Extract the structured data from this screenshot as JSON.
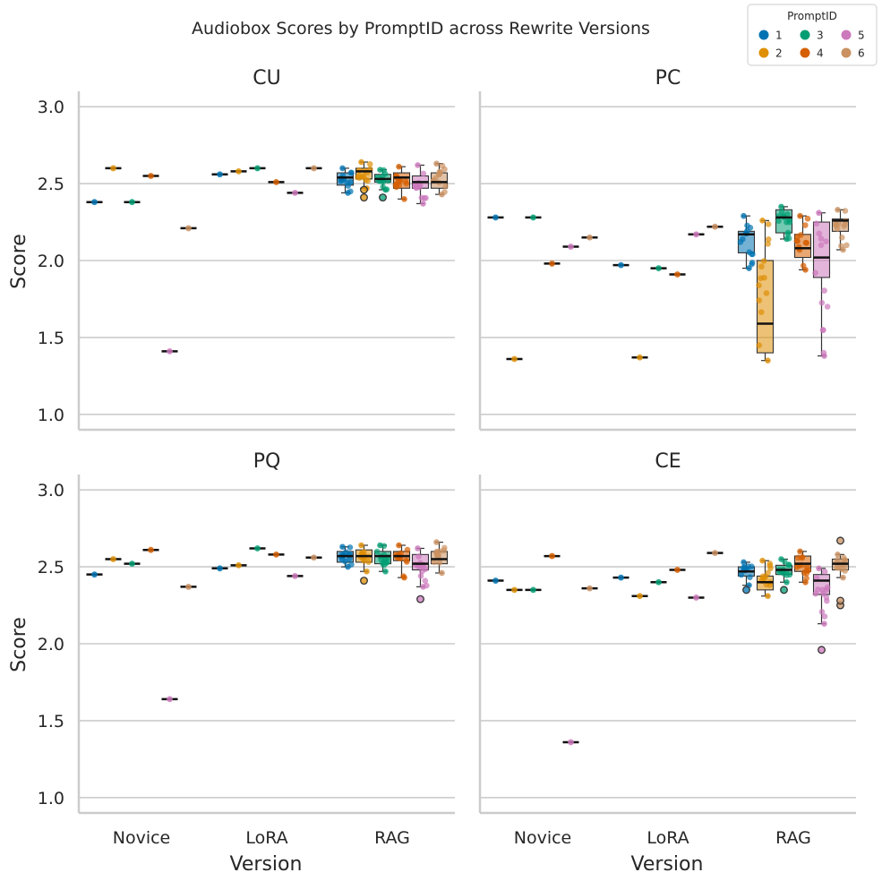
{
  "chart_data": {
    "type": "box",
    "title": "Audiobox Scores by PromptID across Rewrite Versions",
    "xlabel": "Version",
    "ylabel": "Score",
    "categories": [
      "Novice",
      "LoRA",
      "RAG"
    ],
    "ylim": [
      0.9,
      3.1
    ],
    "yticks": [
      "1.0",
      "1.5",
      "2.0",
      "2.5",
      "3.0"
    ],
    "grid": "horizontal",
    "legend": {
      "title": "PromptID",
      "placement": "top-right",
      "entries": [
        {
          "label": "1",
          "color": "#0173b2"
        },
        {
          "label": "2",
          "color": "#de8f05"
        },
        {
          "label": "3",
          "color": "#029e73"
        },
        {
          "label": "4",
          "color": "#d55e00"
        },
        {
          "label": "5",
          "color": "#cc78bc"
        },
        {
          "label": "6",
          "color": "#ca9161"
        }
      ]
    },
    "panels": [
      {
        "name": "CU",
        "novice": [
          2.38,
          2.6,
          2.38,
          2.55,
          1.41,
          2.21
        ],
        "lora": [
          2.56,
          2.58,
          2.6,
          2.51,
          2.44,
          2.6
        ],
        "rag": [
          {
            "q1": 2.49,
            "median": 2.54,
            "q3": 2.57,
            "lo": 2.44,
            "hi": 2.6,
            "fliers": []
          },
          {
            "q1": 2.53,
            "median": 2.58,
            "q3": 2.6,
            "lo": 2.47,
            "hi": 2.64,
            "fliers": [
              2.41,
              2.46
            ]
          },
          {
            "q1": 2.51,
            "median": 2.53,
            "q3": 2.56,
            "lo": 2.46,
            "hi": 2.59,
            "fliers": [
              2.41
            ]
          },
          {
            "q1": 2.47,
            "median": 2.54,
            "q3": 2.57,
            "lo": 2.4,
            "hi": 2.61,
            "fliers": []
          },
          {
            "q1": 2.47,
            "median": 2.51,
            "q3": 2.55,
            "lo": 2.37,
            "hi": 2.62,
            "fliers": []
          },
          {
            "q1": 2.47,
            "median": 2.51,
            "q3": 2.57,
            "lo": 2.43,
            "hi": 2.63,
            "fliers": []
          }
        ]
      },
      {
        "name": "PC",
        "novice": [
          2.28,
          1.36,
          2.28,
          1.98,
          2.09,
          2.15
        ],
        "lora": [
          1.97,
          1.37,
          1.95,
          1.91,
          2.17,
          2.22
        ],
        "rag": [
          {
            "q1": 2.05,
            "median": 2.17,
            "q3": 2.19,
            "lo": 1.95,
            "hi": 2.29,
            "fliers": []
          },
          {
            "q1": 1.4,
            "median": 1.59,
            "q3": 2.0,
            "lo": 1.35,
            "hi": 2.26,
            "fliers": []
          },
          {
            "q1": 2.18,
            "median": 2.28,
            "q3": 2.33,
            "lo": 2.14,
            "hi": 2.35,
            "fliers": []
          },
          {
            "q1": 2.02,
            "median": 2.08,
            "q3": 2.17,
            "lo": 1.94,
            "hi": 2.29,
            "fliers": []
          },
          {
            "q1": 1.89,
            "median": 2.02,
            "q3": 2.25,
            "lo": 1.38,
            "hi": 2.31,
            "fliers": []
          },
          {
            "q1": 2.19,
            "median": 2.26,
            "q3": 2.27,
            "lo": 2.07,
            "hi": 2.33,
            "fliers": []
          }
        ]
      },
      {
        "name": "PQ",
        "novice": [
          2.45,
          2.55,
          2.52,
          2.61,
          1.64,
          2.37
        ],
        "lora": [
          2.49,
          2.51,
          2.62,
          2.58,
          2.44,
          2.56
        ],
        "rag": [
          {
            "q1": 2.53,
            "median": 2.57,
            "q3": 2.6,
            "lo": 2.5,
            "hi": 2.63,
            "fliers": []
          },
          {
            "q1": 2.53,
            "median": 2.57,
            "q3": 2.61,
            "lo": 2.47,
            "hi": 2.64,
            "fliers": [
              2.41
            ]
          },
          {
            "q1": 2.52,
            "median": 2.57,
            "q3": 2.6,
            "lo": 2.47,
            "hi": 2.64,
            "fliers": []
          },
          {
            "q1": 2.54,
            "median": 2.57,
            "q3": 2.6,
            "lo": 2.43,
            "hi": 2.64,
            "fliers": []
          },
          {
            "q1": 2.48,
            "median": 2.52,
            "q3": 2.58,
            "lo": 2.37,
            "hi": 2.62,
            "fliers": [
              2.29
            ]
          },
          {
            "q1": 2.52,
            "median": 2.55,
            "q3": 2.6,
            "lo": 2.46,
            "hi": 2.66,
            "fliers": []
          }
        ]
      },
      {
        "name": "CE",
        "novice": [
          2.41,
          2.35,
          2.35,
          2.57,
          1.36,
          2.36
        ],
        "lora": [
          2.43,
          2.31,
          2.4,
          2.48,
          2.3,
          2.59
        ],
        "rag": [
          {
            "q1": 2.44,
            "median": 2.47,
            "q3": 2.5,
            "lo": 2.38,
            "hi": 2.53,
            "fliers": [
              2.35
            ]
          },
          {
            "q1": 2.35,
            "median": 2.4,
            "q3": 2.44,
            "lo": 2.31,
            "hi": 2.54,
            "fliers": []
          },
          {
            "q1": 2.45,
            "median": 2.48,
            "q3": 2.51,
            "lo": 2.4,
            "hi": 2.55,
            "fliers": [
              2.35
            ]
          },
          {
            "q1": 2.47,
            "median": 2.52,
            "q3": 2.57,
            "lo": 2.4,
            "hi": 2.6,
            "fliers": []
          },
          {
            "q1": 2.32,
            "median": 2.41,
            "q3": 2.45,
            "lo": 2.13,
            "hi": 2.49,
            "fliers": [
              1.96
            ]
          },
          {
            "q1": 2.48,
            "median": 2.52,
            "q3": 2.55,
            "lo": 2.43,
            "hi": 2.58,
            "fliers": [
              2.67,
              2.25,
              2.28
            ]
          }
        ]
      }
    ]
  }
}
